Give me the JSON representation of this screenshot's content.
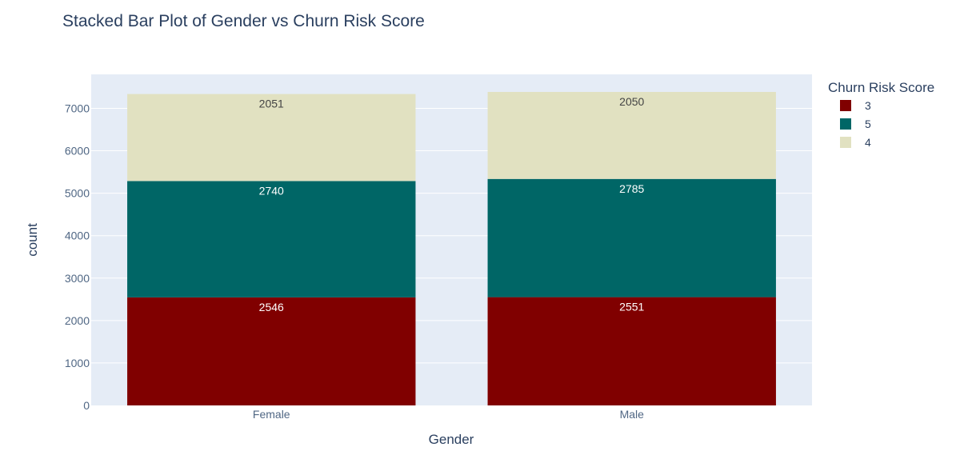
{
  "chart_data": {
    "type": "bar",
    "barmode": "stack",
    "title": "Stacked Bar Plot of Gender vs Churn Risk Score",
    "xlabel": "Gender",
    "ylabel": "count",
    "categories": [
      "Female",
      "Male"
    ],
    "ylim": [
      0,
      7800
    ],
    "yticks": [
      0,
      1000,
      2000,
      3000,
      4000,
      5000,
      6000,
      7000
    ],
    "grid": true,
    "legend_title": "Churn Risk Score",
    "legend_position": "right",
    "series": [
      {
        "name": "3",
        "values": [
          2546,
          2551
        ],
        "color": "#800000",
        "label_color": "#ffffff"
      },
      {
        "name": "5",
        "values": [
          2740,
          2785
        ],
        "color": "#006666",
        "label_color": "#ffffff"
      },
      {
        "name": "4",
        "values": [
          2051,
          2050
        ],
        "color": "#e1e1c1",
        "label_color": "#444444"
      }
    ],
    "plot_bg": "#e5ecf6"
  }
}
